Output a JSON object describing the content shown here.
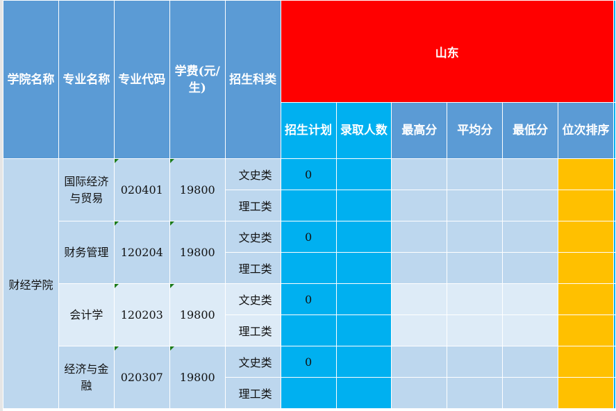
{
  "headers": {
    "college": "学院名称",
    "major": "专业名称",
    "code": "专业代码",
    "fee": "学费(元/生)",
    "category": "招生科类",
    "province": "山东",
    "sub": [
      "招生计划",
      "录取人数",
      "最高分",
      "平均分",
      "最低分",
      "位次排序"
    ]
  },
  "college": "财经学院",
  "majors": [
    {
      "name": "国际经济与贸易",
      "code": "020401",
      "fee": "19800",
      "rows": [
        {
          "category": "文史类",
          "plan": "0"
        },
        {
          "category": "理工类",
          "plan": ""
        }
      ]
    },
    {
      "name": "财务管理",
      "code": "120204",
      "fee": "19800",
      "rows": [
        {
          "category": "文史类",
          "plan": "0"
        },
        {
          "category": "理工类",
          "plan": ""
        }
      ]
    },
    {
      "name": "会计学",
      "code": "120203",
      "fee": "19800",
      "rows": [
        {
          "category": "文史类",
          "plan": "0"
        },
        {
          "category": "理工类",
          "plan": ""
        }
      ]
    },
    {
      "name": "经济与金融",
      "code": "020307",
      "fee": "19800",
      "rows": [
        {
          "category": "文史类",
          "plan": "0"
        },
        {
          "category": "理工类",
          "plan": ""
        }
      ]
    }
  ],
  "colors": {
    "header": "#5b9bd5",
    "province": "#ff0000",
    "cyan": "#00b0f0",
    "light": "#bdd7ee",
    "lighter": "#ddebf7",
    "rank": "#ffc000"
  }
}
